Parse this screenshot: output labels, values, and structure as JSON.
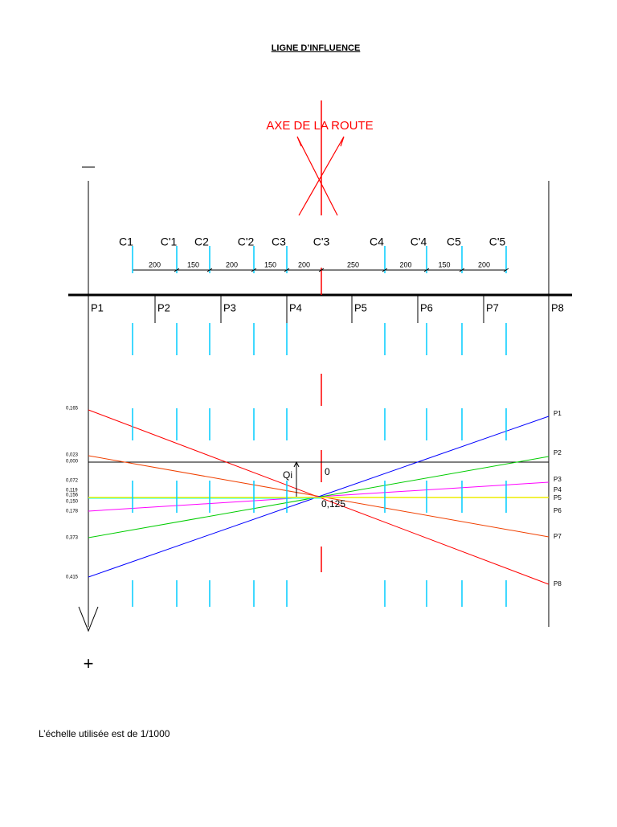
{
  "title": "LIGNE D’INFLUENCE",
  "road_axis": "AXE DE LA ROUTE",
  "sign_minus": "—",
  "sign_plus": "+",
  "columns": [
    "C1",
    "C'1",
    "C2",
    "C'2",
    "C3",
    "C'3",
    "C4",
    "C'4",
    "C5",
    "C'5"
  ],
  "spacings": [
    "200",
    "150",
    "200",
    "150",
    "200",
    "250",
    "200",
    "150",
    "200"
  ],
  "piles": [
    "P1",
    "P2",
    "P3",
    "P4",
    "P5",
    "P6",
    "P7",
    "P8"
  ],
  "left_values": [
    "0,165",
    "0,023",
    "0,000",
    "0,072",
    "0,119",
    "0,156",
    "0,150",
    "0,178",
    "0,373",
    "0,415"
  ],
  "right_labels": [
    "P1",
    "P2",
    "P3",
    "P4",
    "P5",
    "P6",
    "P7",
    "P8"
  ],
  "annotation_qi": "Qi",
  "annotation_zero": "0",
  "annotation_center": "0,125",
  "footer": "L’échelle utilisée est de 1/1000"
}
